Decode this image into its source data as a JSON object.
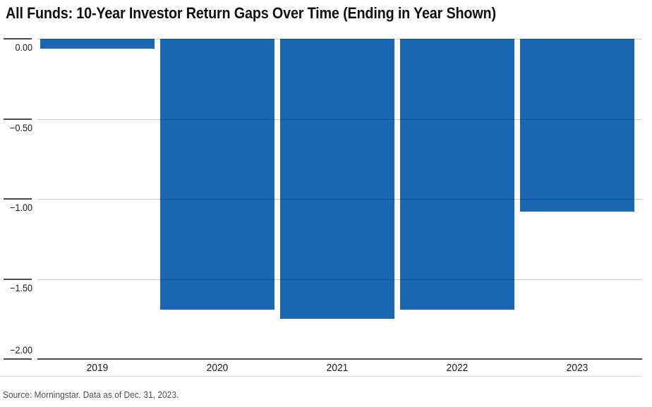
{
  "title": "All Funds: 10-Year Investor Return Gaps Over Time (Ending in Year Shown)",
  "source": "Source: Morningstar. Data as of Dec. 31, 2023.",
  "colors": {
    "bar": "#1b67b2",
    "axis": "#4a4a4a",
    "gridline_on_white": "#cccccc",
    "gridline_on_bar": "#16528e",
    "title_text": "#111111",
    "tick_text": "#1a1a1a",
    "source_text": "#4f4f4f"
  },
  "chart_data": {
    "type": "bar",
    "title": "All Funds: 10-Year Investor Return Gaps Over Time (Ending in Year Shown)",
    "categories": [
      "2019",
      "2020",
      "2021",
      "2022",
      "2023"
    ],
    "values": [
      -0.06,
      -1.69,
      -1.75,
      -1.69,
      -1.08
    ],
    "xlabel": "",
    "ylabel": "",
    "ylim": [
      -2.0,
      0.0
    ],
    "yticks": [
      {
        "value": 0,
        "label": "0.00"
      },
      {
        "value": -0.5,
        "label": "−0.50"
      },
      {
        "value": -1.0,
        "label": "−1.00"
      },
      {
        "value": -1.5,
        "label": "−1.50"
      },
      {
        "value": -2.0,
        "label": "−2.00"
      }
    ],
    "grid": true,
    "legend": false,
    "bar_color": "#1b67b2",
    "source": "Source: Morningstar. Data as of Dec. 31, 2023."
  }
}
